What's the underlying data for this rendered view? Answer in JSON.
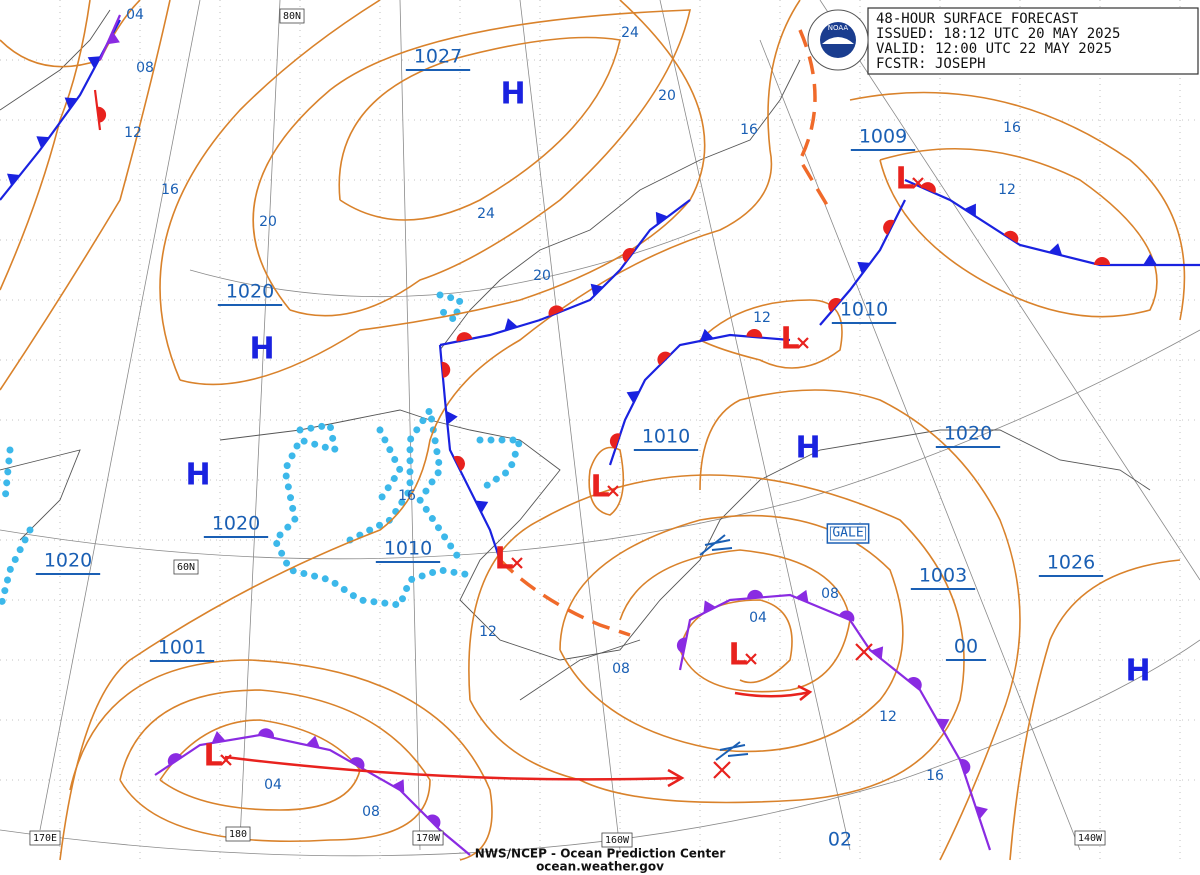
{
  "header": {
    "lines": [
      "48-HOUR SURFACE FORECAST",
      "ISSUED: 18:12 UTC 20 MAY 2025",
      "VALID:  12:00 UTC 22 MAY 2025",
      "FCSTR: JOSEPH"
    ]
  },
  "logo": "NOAA",
  "footer": {
    "line1": "NWS/NCEP - Ocean Prediction Center",
    "line2": "ocean.weather.gov"
  },
  "symbols": {
    "high": "H",
    "low": "L"
  },
  "pressure_centers": [
    "1027",
    "1020",
    "1020",
    "1020",
    "1001",
    "1010",
    "1010",
    "1010",
    "1009",
    "1020",
    "1003",
    "1026",
    "00"
  ],
  "isobar_labels": [
    "04",
    "08",
    "12",
    "16",
    "20",
    "24",
    "20",
    "20",
    "24",
    "16",
    "16",
    "12",
    "12",
    "16",
    "12",
    "08",
    "04",
    "08",
    "12",
    "16",
    "04",
    "08",
    "02"
  ],
  "grid_labels": [
    "80N",
    "60N",
    "170E",
    "180",
    "170W",
    "160W",
    "140W"
  ],
  "warning": "GALE"
}
